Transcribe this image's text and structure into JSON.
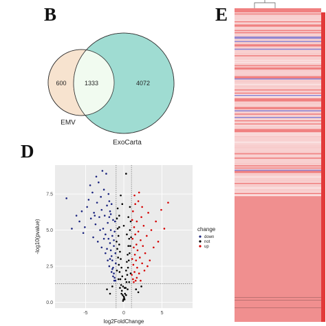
{
  "panels": {
    "b": "B",
    "d": "D",
    "e": "E"
  },
  "venn": {
    "left_only": "600",
    "overlap": "1333",
    "right_only": "4072",
    "left_name": "EMV",
    "right_name": "ExoCarta",
    "colors": {
      "left": "#f7e3cf",
      "right": "#9fdcd2",
      "overlap": "#f1fbf0"
    }
  },
  "chart_data": {
    "type": "scatter",
    "title": "",
    "xlabel": "log2FoldChange",
    "ylabel": "-log10(pvalue)",
    "xlim": [
      -9,
      9
    ],
    "ylim": [
      -0.4,
      9.5
    ],
    "x_ticks": [
      "-5",
      "0",
      "5"
    ],
    "x_tick_values": [
      -5,
      0,
      5
    ],
    "y_ticks": [
      "0.0",
      "2.5",
      "5.0",
      "7.5"
    ],
    "y_tick_values": [
      0,
      2.5,
      5,
      7.5
    ],
    "fold_change_thresholds": [
      -1,
      1
    ],
    "pvalue_threshold": 1.3,
    "grid": true,
    "legend_position": "right",
    "legend_title": "change",
    "series": [
      {
        "name": "down",
        "color": "#1a237e",
        "points": [
          [
            -6.2,
            6.0
          ],
          [
            -5.8,
            5.6
          ],
          [
            -5.5,
            6.3
          ],
          [
            -5.1,
            5.2
          ],
          [
            -4.8,
            6.6
          ],
          [
            -4.6,
            7.1
          ],
          [
            -4.3,
            5.8
          ],
          [
            -4.1,
            7.6
          ],
          [
            -3.9,
            6.2
          ],
          [
            -3.7,
            5.4
          ],
          [
            -3.5,
            6.9
          ],
          [
            -3.3,
            8.3
          ],
          [
            -3.2,
            5.9
          ],
          [
            -3.0,
            7.3
          ],
          [
            -2.9,
            6.4
          ],
          [
            -2.7,
            5.1
          ],
          [
            -2.6,
            7.8
          ],
          [
            -2.5,
            6.0
          ],
          [
            -2.4,
            4.7
          ],
          [
            -2.3,
            8.9
          ],
          [
            -2.2,
            6.7
          ],
          [
            -2.1,
            5.5
          ],
          [
            -2.0,
            4.4
          ],
          [
            -1.9,
            7.0
          ],
          [
            -1.9,
            5.9
          ],
          [
            -1.8,
            4.1
          ],
          [
            -1.8,
            6.3
          ],
          [
            -1.7,
            3.6
          ],
          [
            -1.7,
            5.0
          ],
          [
            -1.6,
            3.2
          ],
          [
            -1.6,
            6.8
          ],
          [
            -1.5,
            2.9
          ],
          [
            -1.5,
            4.6
          ],
          [
            -1.4,
            2.4
          ],
          [
            -1.4,
            5.7
          ],
          [
            -1.3,
            2.0
          ],
          [
            -1.3,
            3.9
          ],
          [
            -1.2,
            1.7
          ],
          [
            -1.2,
            4.9
          ],
          [
            -1.1,
            1.5
          ],
          [
            -1.1,
            3.4
          ],
          [
            -1.05,
            2.7
          ],
          [
            -4.4,
            8.1
          ],
          [
            -3.6,
            8.7
          ],
          [
            -2.8,
            9.1
          ],
          [
            -6.8,
            5.1
          ],
          [
            -5.3,
            4.8
          ],
          [
            -4.0,
            4.5
          ],
          [
            -3.4,
            4.2
          ],
          [
            -2.9,
            3.8
          ],
          [
            -2.4,
            3.4
          ],
          [
            -2.1,
            2.9
          ],
          [
            -1.9,
            2.5
          ],
          [
            -1.6,
            2.1
          ],
          [
            -1.4,
            1.8
          ],
          [
            -1.25,
            1.5
          ],
          [
            -3.1,
            5.0
          ],
          [
            -2.6,
            4.4
          ],
          [
            -2.2,
            3.7
          ],
          [
            -1.8,
            3.0
          ],
          [
            -1.5,
            2.3
          ],
          [
            -3.8,
            6.0
          ],
          [
            -2.0,
            7.5
          ],
          [
            -1.7,
            6.1
          ],
          [
            -1.3,
            4.3
          ],
          [
            -1.15,
            5.6
          ],
          [
            -7.5,
            7.2
          ]
        ]
      },
      {
        "name": "not",
        "color": "#000000",
        "points": [
          [
            -0.9,
            5.8
          ],
          [
            -0.8,
            5.1
          ],
          [
            -0.7,
            4.6
          ],
          [
            -0.6,
            4.0
          ],
          [
            -0.5,
            3.5
          ],
          [
            -0.4,
            3.0
          ],
          [
            -0.3,
            2.4
          ],
          [
            -0.2,
            1.8
          ],
          [
            -0.1,
            1.1
          ],
          [
            0.0,
            0.4
          ],
          [
            0.1,
            1.0
          ],
          [
            0.2,
            1.6
          ],
          [
            0.3,
            2.2
          ],
          [
            0.4,
            2.8
          ],
          [
            0.5,
            3.3
          ],
          [
            0.6,
            3.9
          ],
          [
            0.7,
            4.4
          ],
          [
            0.8,
            5.0
          ],
          [
            0.9,
            5.6
          ],
          [
            -0.95,
            4.2
          ],
          [
            -0.85,
            3.7
          ],
          [
            -0.75,
            3.1
          ],
          [
            -0.65,
            2.6
          ],
          [
            -0.55,
            2.1
          ],
          [
            -0.45,
            1.6
          ],
          [
            -0.35,
            1.2
          ],
          [
            -0.25,
            0.8
          ],
          [
            -0.15,
            0.5
          ],
          [
            -0.05,
            0.2
          ],
          [
            0.05,
            0.3
          ],
          [
            0.15,
            0.6
          ],
          [
            0.25,
            1.0
          ],
          [
            0.35,
            1.4
          ],
          [
            0.45,
            1.9
          ],
          [
            0.55,
            2.4
          ],
          [
            0.65,
            2.9
          ],
          [
            0.75,
            3.4
          ],
          [
            0.85,
            3.9
          ],
          [
            0.95,
            4.5
          ],
          [
            -0.9,
            2.2
          ],
          [
            -0.7,
            1.6
          ],
          [
            -0.5,
            1.0
          ],
          [
            -0.3,
            0.6
          ],
          [
            -0.1,
            0.1
          ],
          [
            0.1,
            0.2
          ],
          [
            0.3,
            0.5
          ],
          [
            0.5,
            0.9
          ],
          [
            0.7,
            1.4
          ],
          [
            0.9,
            2.0
          ],
          [
            -0.8,
            6.5
          ],
          [
            -0.6,
            6.0
          ],
          [
            0.6,
            5.9
          ],
          [
            0.8,
            6.6
          ],
          [
            -1.5,
            1.1
          ],
          [
            -2.2,
            0.9
          ],
          [
            -1.8,
            0.6
          ],
          [
            1.6,
            0.9
          ],
          [
            2.3,
            1.1
          ],
          [
            1.9,
            0.7
          ],
          [
            -0.4,
            7.4
          ],
          [
            0.3,
            8.9
          ],
          [
            -0.2,
            6.8
          ],
          [
            0.0,
            5.3
          ],
          [
            -0.6,
            5.2
          ],
          [
            0.4,
            4.7
          ]
        ]
      },
      {
        "name": "up",
        "color": "#d50000",
        "points": [
          [
            1.05,
            1.9
          ],
          [
            1.1,
            3.0
          ],
          [
            1.15,
            4.4
          ],
          [
            1.2,
            1.6
          ],
          [
            1.25,
            2.6
          ],
          [
            1.3,
            3.8
          ],
          [
            1.35,
            5.2
          ],
          [
            1.4,
            2.1
          ],
          [
            1.45,
            3.3
          ],
          [
            1.5,
            4.7
          ],
          [
            1.55,
            1.5
          ],
          [
            1.6,
            2.9
          ],
          [
            1.65,
            4.0
          ],
          [
            1.7,
            5.6
          ],
          [
            1.75,
            2.4
          ],
          [
            1.8,
            3.6
          ],
          [
            1.9,
            4.9
          ],
          [
            2.0,
            2.0
          ],
          [
            2.1,
            3.1
          ],
          [
            2.2,
            4.3
          ],
          [
            2.3,
            5.9
          ],
          [
            2.4,
            2.7
          ],
          [
            2.5,
            3.9
          ],
          [
            2.6,
            5.3
          ],
          [
            2.8,
            3.4
          ],
          [
            3.0,
            4.6
          ],
          [
            3.2,
            6.2
          ],
          [
            3.4,
            2.9
          ],
          [
            3.6,
            5.0
          ],
          [
            3.9,
            3.8
          ],
          [
            4.2,
            5.6
          ],
          [
            4.5,
            4.2
          ],
          [
            4.9,
            6.4
          ],
          [
            5.3,
            5.1
          ],
          [
            5.8,
            6.9
          ],
          [
            1.2,
            6.3
          ],
          [
            1.5,
            6.8
          ],
          [
            1.9,
            7.0
          ],
          [
            2.4,
            6.6
          ],
          [
            1.1,
            5.7
          ],
          [
            1.3,
            1.4
          ],
          [
            1.7,
            1.7
          ],
          [
            2.2,
            1.5
          ],
          [
            2.7,
            2.2
          ],
          [
            3.1,
            2.5
          ],
          [
            1.4,
            7.4
          ],
          [
            2.0,
            7.6
          ]
        ]
      }
    ]
  },
  "heatmap": {
    "top_color": "#f08080",
    "lower_color": "#f08f8f",
    "band_light": "#f8d2d2",
    "band_blue": "#8a86d6",
    "side_bar_color": "#e23a3a"
  }
}
